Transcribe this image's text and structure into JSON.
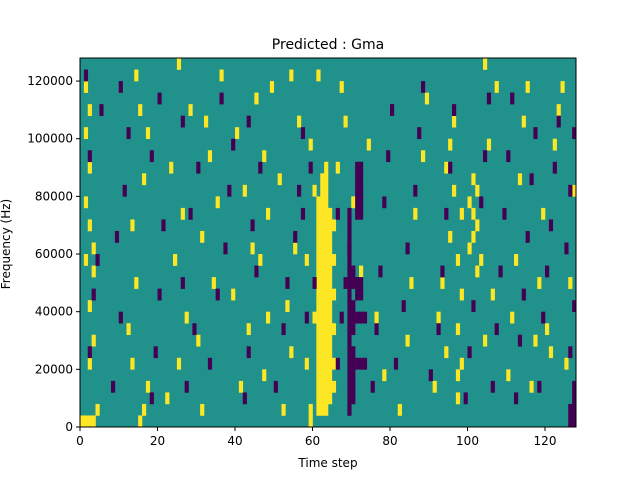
{
  "chart_data": {
    "type": "heatmap",
    "title": "Predicted : Gma",
    "xlabel": "Time step",
    "ylabel": "Frequency (Hz)",
    "xlim": [
      0,
      128
    ],
    "ylim": [
      0,
      128000
    ],
    "x_ticks": [
      0,
      20,
      40,
      60,
      80,
      100,
      120
    ],
    "y_ticks": [
      0,
      20000,
      40000,
      60000,
      80000,
      100000,
      120000
    ],
    "x_tick_labels": [
      "0",
      "20",
      "40",
      "60",
      "80",
      "100",
      "120"
    ],
    "y_tick_labels": [
      "0",
      "20000",
      "40000",
      "60000",
      "80000",
      "100000",
      "120000"
    ],
    "colormap": "viridis",
    "colors": {
      "low": "#440154",
      "mid": "#21918c",
      "high": "#fde725"
    },
    "n_time_steps": 128,
    "n_freq_bins": 32,
    "freq_bin_width": 4000,
    "background_level": "mid",
    "cells_high": [
      [
        0,
        0
      ],
      [
        1,
        0
      ],
      [
        2,
        0
      ],
      [
        3,
        0
      ],
      [
        4,
        1
      ],
      [
        2,
        5
      ],
      [
        3,
        7
      ],
      [
        2,
        10
      ],
      [
        3,
        13
      ],
      [
        1,
        14
      ],
      [
        3,
        15
      ],
      [
        2,
        17
      ],
      [
        1,
        19
      ],
      [
        2,
        22
      ],
      [
        1,
        25
      ],
      [
        2,
        27
      ],
      [
        1,
        29
      ],
      [
        15,
        0
      ],
      [
        16,
        1
      ],
      [
        17,
        3
      ],
      [
        13,
        5
      ],
      [
        12,
        8
      ],
      [
        14,
        12
      ],
      [
        13,
        17
      ],
      [
        16,
        21
      ],
      [
        17,
        25
      ],
      [
        15,
        27
      ],
      [
        14,
        30
      ],
      [
        22,
        2
      ],
      [
        25,
        5
      ],
      [
        27,
        9
      ],
      [
        24,
        14
      ],
      [
        26,
        18
      ],
      [
        23,
        22
      ],
      [
        28,
        27
      ],
      [
        25,
        31
      ],
      [
        31,
        1
      ],
      [
        30,
        7
      ],
      [
        34,
        12
      ],
      [
        31,
        16
      ],
      [
        35,
        19
      ],
      [
        33,
        23
      ],
      [
        32,
        26
      ],
      [
        36,
        30
      ],
      [
        41,
        3
      ],
      [
        43,
        8
      ],
      [
        39,
        11
      ],
      [
        44,
        15
      ],
      [
        42,
        20
      ],
      [
        40,
        25
      ],
      [
        45,
        28
      ],
      [
        47,
        4
      ],
      [
        48,
        9
      ],
      [
        46,
        14
      ],
      [
        48,
        18
      ],
      [
        47,
        23
      ],
      [
        49,
        29
      ],
      [
        52,
        1
      ],
      [
        54,
        6
      ],
      [
        53,
        10
      ],
      [
        55,
        15
      ],
      [
        51,
        21
      ],
      [
        56,
        26
      ],
      [
        54,
        30
      ],
      [
        59,
        0
      ],
      [
        59,
        1
      ],
      [
        58,
        5
      ],
      [
        60,
        9
      ],
      [
        58,
        14
      ],
      [
        60,
        20
      ],
      [
        59,
        24
      ],
      [
        61,
        30
      ],
      [
        61,
        1
      ],
      [
        61,
        2
      ],
      [
        61,
        3
      ],
      [
        61,
        4
      ],
      [
        61,
        5
      ],
      [
        61,
        6
      ],
      [
        61,
        7
      ],
      [
        61,
        8
      ],
      [
        61,
        9
      ],
      [
        61,
        10
      ],
      [
        61,
        11
      ],
      [
        61,
        12
      ],
      [
        61,
        13
      ],
      [
        61,
        14
      ],
      [
        61,
        15
      ],
      [
        61,
        16
      ],
      [
        61,
        17
      ],
      [
        61,
        18
      ],
      [
        61,
        19
      ],
      [
        62,
        1
      ],
      [
        62,
        2
      ],
      [
        62,
        3
      ],
      [
        62,
        4
      ],
      [
        62,
        5
      ],
      [
        62,
        6
      ],
      [
        62,
        7
      ],
      [
        62,
        8
      ],
      [
        62,
        9
      ],
      [
        62,
        10
      ],
      [
        62,
        11
      ],
      [
        62,
        12
      ],
      [
        62,
        13
      ],
      [
        62,
        14
      ],
      [
        62,
        15
      ],
      [
        62,
        16
      ],
      [
        62,
        17
      ],
      [
        62,
        18
      ],
      [
        62,
        19
      ],
      [
        62,
        20
      ],
      [
        62,
        21
      ],
      [
        63,
        1
      ],
      [
        63,
        2
      ],
      [
        63,
        3
      ],
      [
        63,
        4
      ],
      [
        63,
        5
      ],
      [
        63,
        6
      ],
      [
        63,
        7
      ],
      [
        63,
        8
      ],
      [
        63,
        9
      ],
      [
        63,
        10
      ],
      [
        63,
        11
      ],
      [
        63,
        12
      ],
      [
        63,
        13
      ],
      [
        63,
        14
      ],
      [
        63,
        15
      ],
      [
        63,
        16
      ],
      [
        63,
        17
      ],
      [
        63,
        18
      ],
      [
        63,
        19
      ],
      [
        63,
        20
      ],
      [
        63,
        21
      ],
      [
        63,
        22
      ],
      [
        64,
        2
      ],
      [
        64,
        3
      ],
      [
        64,
        4
      ],
      [
        64,
        5
      ],
      [
        64,
        6
      ],
      [
        64,
        7
      ],
      [
        64,
        8
      ],
      [
        64,
        9
      ],
      [
        64,
        10
      ],
      [
        64,
        11
      ],
      [
        64,
        12
      ],
      [
        64,
        13
      ],
      [
        64,
        14
      ],
      [
        64,
        15
      ],
      [
        64,
        16
      ],
      [
        64,
        17
      ],
      [
        64,
        18
      ],
      [
        65,
        3
      ],
      [
        65,
        5
      ],
      [
        65,
        8
      ],
      [
        65,
        11
      ],
      [
        65,
        14
      ],
      [
        65,
        17
      ],
      [
        66,
        22
      ],
      [
        67,
        29
      ],
      [
        68,
        26
      ],
      [
        70,
        19
      ],
      [
        72,
        13
      ],
      [
        74,
        24
      ],
      [
        76,
        9
      ],
      [
        78,
        4
      ],
      [
        82,
        1
      ],
      [
        84,
        7
      ],
      [
        85,
        12
      ],
      [
        86,
        18
      ],
      [
        88,
        23
      ],
      [
        89,
        28
      ],
      [
        91,
        3
      ],
      [
        92,
        9
      ],
      [
        93,
        12
      ],
      [
        94,
        6
      ],
      [
        95,
        16
      ],
      [
        96,
        20
      ],
      [
        94,
        22
      ],
      [
        95,
        24
      ],
      [
        96,
        26
      ],
      [
        97,
        2
      ],
      [
        97,
        4
      ],
      [
        98,
        5
      ],
      [
        97,
        8
      ],
      [
        98,
        11
      ],
      [
        97,
        14
      ],
      [
        98,
        18
      ],
      [
        100,
        15
      ],
      [
        101,
        16
      ],
      [
        102,
        17
      ],
      [
        101,
        18
      ],
      [
        100,
        19
      ],
      [
        102,
        20
      ],
      [
        101,
        21
      ],
      [
        103,
        14
      ],
      [
        102,
        13
      ],
      [
        104,
        7
      ],
      [
        106,
        11
      ],
      [
        105,
        24
      ],
      [
        107,
        29
      ],
      [
        104,
        31
      ],
      [
        110,
        4
      ],
      [
        111,
        9
      ],
      [
        112,
        14
      ],
      [
        113,
        21
      ],
      [
        114,
        26
      ],
      [
        115,
        29
      ],
      [
        116,
        3
      ],
      [
        117,
        7
      ],
      [
        118,
        12
      ],
      [
        119,
        18
      ],
      [
        120,
        8
      ],
      [
        121,
        6
      ],
      [
        122,
        24
      ],
      [
        123,
        27
      ],
      [
        124,
        29
      ],
      [
        125,
        5
      ],
      [
        126,
        12
      ],
      [
        127,
        20
      ]
    ],
    "cells_low": [
      [
        3,
        11
      ],
      [
        4,
        14
      ],
      [
        2,
        23
      ],
      [
        5,
        27
      ],
      [
        1,
        30
      ],
      [
        2,
        6
      ],
      [
        8,
        3
      ],
      [
        10,
        9
      ],
      [
        9,
        16
      ],
      [
        11,
        20
      ],
      [
        12,
        25
      ],
      [
        10,
        29
      ],
      [
        18,
        2
      ],
      [
        19,
        6
      ],
      [
        20,
        11
      ],
      [
        21,
        17
      ],
      [
        18,
        23
      ],
      [
        20,
        28
      ],
      [
        27,
        3
      ],
      [
        29,
        8
      ],
      [
        26,
        12
      ],
      [
        28,
        18
      ],
      [
        30,
        22
      ],
      [
        26,
        26
      ],
      [
        33,
        5
      ],
      [
        35,
        11
      ],
      [
        37,
        15
      ],
      [
        38,
        20
      ],
      [
        39,
        24
      ],
      [
        36,
        28
      ],
      [
        42,
        2
      ],
      [
        43,
        6
      ],
      [
        45,
        13
      ],
      [
        44,
        17
      ],
      [
        46,
        22
      ],
      [
        43,
        26
      ],
      [
        50,
        3
      ],
      [
        52,
        8
      ],
      [
        53,
        12
      ],
      [
        55,
        16
      ],
      [
        56,
        20
      ],
      [
        57,
        25
      ],
      [
        58,
        9
      ],
      [
        60,
        12
      ],
      [
        57,
        18
      ],
      [
        59,
        22
      ],
      [
        66,
        5
      ],
      [
        67,
        9
      ],
      [
        68,
        12
      ],
      [
        69,
        15
      ],
      [
        66,
        18
      ],
      [
        69,
        1
      ],
      [
        69,
        2
      ],
      [
        69,
        3
      ],
      [
        69,
        4
      ],
      [
        69,
        5
      ],
      [
        69,
        6
      ],
      [
        69,
        7
      ],
      [
        69,
        8
      ],
      [
        69,
        9
      ],
      [
        69,
        10
      ],
      [
        69,
        11
      ],
      [
        69,
        12
      ],
      [
        69,
        13
      ],
      [
        69,
        14
      ],
      [
        69,
        15
      ],
      [
        69,
        16
      ],
      [
        69,
        17
      ],
      [
        69,
        18
      ],
      [
        70,
        2
      ],
      [
        70,
        3
      ],
      [
        70,
        4
      ],
      [
        70,
        6
      ],
      [
        70,
        8
      ],
      [
        70,
        10
      ],
      [
        70,
        12
      ],
      [
        70,
        13
      ],
      [
        71,
        11
      ],
      [
        72,
        11
      ],
      [
        71,
        12
      ],
      [
        72,
        12
      ],
      [
        70,
        5
      ],
      [
        71,
        5
      ],
      [
        72,
        5
      ],
      [
        73,
        5
      ],
      [
        70,
        9
      ],
      [
        71,
        9
      ],
      [
        72,
        9
      ],
      [
        73,
        9
      ],
      [
        71,
        18
      ],
      [
        72,
        18
      ],
      [
        71,
        19
      ],
      [
        72,
        19
      ],
      [
        71,
        20
      ],
      [
        72,
        20
      ],
      [
        71,
        21
      ],
      [
        72,
        21
      ],
      [
        71,
        22
      ],
      [
        72,
        22
      ],
      [
        75,
        3
      ],
      [
        76,
        8
      ],
      [
        77,
        13
      ],
      [
        78,
        19
      ],
      [
        79,
        23
      ],
      [
        80,
        27
      ],
      [
        81,
        5
      ],
      [
        83,
        10
      ],
      [
        84,
        15
      ],
      [
        86,
        20
      ],
      [
        87,
        25
      ],
      [
        88,
        29
      ],
      [
        90,
        4
      ],
      [
        92,
        8
      ],
      [
        93,
        13
      ],
      [
        94,
        18
      ],
      [
        95,
        22
      ],
      [
        96,
        27
      ],
      [
        99,
        2
      ],
      [
        100,
        6
      ],
      [
        101,
        10
      ],
      [
        103,
        19
      ],
      [
        104,
        23
      ],
      [
        105,
        28
      ],
      [
        106,
        3
      ],
      [
        107,
        8
      ],
      [
        108,
        13
      ],
      [
        109,
        18
      ],
      [
        110,
        23
      ],
      [
        111,
        28
      ],
      [
        112,
        2
      ],
      [
        113,
        7
      ],
      [
        114,
        11
      ],
      [
        115,
        16
      ],
      [
        116,
        21
      ],
      [
        117,
        25
      ],
      [
        118,
        3
      ],
      [
        119,
        9
      ],
      [
        120,
        13
      ],
      [
        121,
        17
      ],
      [
        122,
        22
      ],
      [
        123,
        26
      ],
      [
        126,
        0
      ],
      [
        127,
        0
      ],
      [
        126,
        1
      ],
      [
        127,
        1
      ],
      [
        127,
        2
      ],
      [
        127,
        3
      ],
      [
        126,
        6
      ],
      [
        127,
        10
      ],
      [
        125,
        15
      ],
      [
        126,
        20
      ],
      [
        127,
        25
      ]
    ]
  }
}
